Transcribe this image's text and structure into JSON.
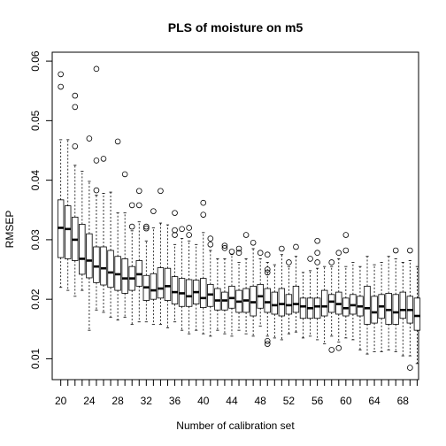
{
  "chart_data": {
    "type": "box",
    "title": "PLS of moisture on m5",
    "xlabel": "Number of calibration set",
    "ylabel": "RMSEP",
    "ylim": [
      0.0065,
      0.0615
    ],
    "xlim": [
      18.8,
      70.2
    ],
    "x_tick_labels": [
      "20",
      "24",
      "28",
      "32",
      "36",
      "40",
      "44",
      "48",
      "52",
      "56",
      "60",
      "64",
      "68"
    ],
    "y_tick_labels": [
      "0.01",
      "0.02",
      "0.03",
      "0.04",
      "0.05",
      "0.06"
    ],
    "grid": false,
    "boxes": [
      {
        "x": 20,
        "whislo": 0.022,
        "q1": 0.027,
        "med": 0.032,
        "q3": 0.0367,
        "whishi": 0.0468,
        "outliers": [
          0.0557,
          0.0578
        ]
      },
      {
        "x": 21,
        "whislo": 0.0215,
        "q1": 0.0268,
        "med": 0.0318,
        "q3": 0.0357,
        "whishi": 0.0468
      },
      {
        "x": 22,
        "whislo": 0.0205,
        "q1": 0.0265,
        "med": 0.03,
        "q3": 0.0338,
        "whishi": 0.0425,
        "outliers": [
          0.0457,
          0.0523,
          0.0542
        ]
      },
      {
        "x": 23,
        "whislo": 0.0215,
        "q1": 0.0242,
        "med": 0.0268,
        "q3": 0.0326,
        "whishi": 0.0415
      },
      {
        "x": 24,
        "whislo": 0.0148,
        "q1": 0.0236,
        "med": 0.0265,
        "q3": 0.031,
        "whishi": 0.0398,
        "outliers": [
          0.047
        ]
      },
      {
        "x": 25,
        "whislo": 0.0182,
        "q1": 0.0228,
        "med": 0.0255,
        "q3": 0.0288,
        "whishi": 0.0375,
        "outliers": [
          0.0383,
          0.0433,
          0.0587
        ]
      },
      {
        "x": 26,
        "whislo": 0.0178,
        "q1": 0.0224,
        "med": 0.0252,
        "q3": 0.0288,
        "whishi": 0.0378,
        "outliers": [
          0.0436
        ]
      },
      {
        "x": 27,
        "whislo": 0.017,
        "q1": 0.022,
        "med": 0.0245,
        "q3": 0.0282,
        "whishi": 0.038
      },
      {
        "x": 28,
        "whislo": 0.0165,
        "q1": 0.0215,
        "med": 0.0242,
        "q3": 0.0272,
        "whishi": 0.0345,
        "outliers": [
          0.0465
        ]
      },
      {
        "x": 29,
        "whislo": 0.017,
        "q1": 0.021,
        "med": 0.0235,
        "q3": 0.0268,
        "whishi": 0.0345,
        "outliers": [
          0.041
        ]
      },
      {
        "x": 30,
        "whislo": 0.0158,
        "q1": 0.0215,
        "med": 0.0235,
        "q3": 0.0255,
        "whishi": 0.0315,
        "outliers": [
          0.0322,
          0.0358
        ]
      },
      {
        "x": 31,
        "whislo": 0.0162,
        "q1": 0.0222,
        "med": 0.0242,
        "q3": 0.0265,
        "whishi": 0.033,
        "outliers": [
          0.0358,
          0.0382
        ]
      },
      {
        "x": 32,
        "whislo": 0.0162,
        "q1": 0.0198,
        "med": 0.022,
        "q3": 0.024,
        "whishi": 0.0298,
        "outliers": [
          0.0319,
          0.0322
        ]
      },
      {
        "x": 33,
        "whislo": 0.0158,
        "q1": 0.02,
        "med": 0.0215,
        "q3": 0.0243,
        "whishi": 0.032,
        "outliers": [
          0.0348
        ]
      },
      {
        "x": 34,
        "whislo": 0.0158,
        "q1": 0.0202,
        "med": 0.0218,
        "q3": 0.0253,
        "whishi": 0.0328,
        "outliers": [
          0.0382
        ]
      },
      {
        "x": 35,
        "whislo": 0.0152,
        "q1": 0.0198,
        "med": 0.0222,
        "q3": 0.0252,
        "whishi": 0.0325
      },
      {
        "x": 36,
        "whislo": 0.0162,
        "q1": 0.0192,
        "med": 0.0212,
        "q3": 0.0238,
        "whishi": 0.0292,
        "outliers": [
          0.0308,
          0.0316,
          0.0345
        ]
      },
      {
        "x": 37,
        "whislo": 0.0148,
        "q1": 0.0188,
        "med": 0.021,
        "q3": 0.0235,
        "whishi": 0.0302,
        "outliers": [
          0.0318
        ]
      },
      {
        "x": 38,
        "whislo": 0.0142,
        "q1": 0.0188,
        "med": 0.0205,
        "q3": 0.0233,
        "whishi": 0.0298,
        "outliers": [
          0.0308,
          0.032
        ]
      },
      {
        "x": 39,
        "whislo": 0.0148,
        "q1": 0.0192,
        "med": 0.0212,
        "q3": 0.0232,
        "whishi": 0.0292
      },
      {
        "x": 40,
        "whislo": 0.0142,
        "q1": 0.0186,
        "med": 0.0202,
        "q3": 0.0235,
        "whishi": 0.0312,
        "outliers": [
          0.0342,
          0.0362
        ]
      },
      {
        "x": 41,
        "whislo": 0.0138,
        "q1": 0.0188,
        "med": 0.0208,
        "q3": 0.0225,
        "whishi": 0.0282,
        "outliers": [
          0.0292,
          0.0302
        ]
      },
      {
        "x": 42,
        "whislo": 0.0148,
        "q1": 0.0182,
        "med": 0.0198,
        "q3": 0.0218,
        "whishi": 0.0268
      },
      {
        "x": 43,
        "whislo": 0.0142,
        "q1": 0.0182,
        "med": 0.0198,
        "q3": 0.0212,
        "whishi": 0.0268,
        "outliers": [
          0.0286,
          0.029
        ]
      },
      {
        "x": 44,
        "whislo": 0.0138,
        "q1": 0.0185,
        "med": 0.0202,
        "q3": 0.0222,
        "whishi": 0.0275,
        "outliers": [
          0.028
        ]
      },
      {
        "x": 45,
        "whislo": 0.0148,
        "q1": 0.0178,
        "med": 0.0196,
        "q3": 0.0215,
        "whishi": 0.0262,
        "outliers": [
          0.0278,
          0.0285
        ]
      },
      {
        "x": 46,
        "whislo": 0.0142,
        "q1": 0.0178,
        "med": 0.0198,
        "q3": 0.0218,
        "whishi": 0.0268,
        "outliers": [
          0.0308
        ]
      },
      {
        "x": 47,
        "whislo": 0.0138,
        "q1": 0.0172,
        "med": 0.0195,
        "q3": 0.0222,
        "whishi": 0.0285,
        "outliers": [
          0.0295
        ]
      },
      {
        "x": 48,
        "whislo": 0.0155,
        "q1": 0.0185,
        "med": 0.0205,
        "q3": 0.0225,
        "whishi": 0.0268,
        "outliers": [
          0.0278
        ]
      },
      {
        "x": 49,
        "whislo": 0.0138,
        "q1": 0.0178,
        "med": 0.0195,
        "q3": 0.0218,
        "whishi": 0.0262,
        "outliers": [
          0.0125,
          0.013,
          0.0245,
          0.025,
          0.0275
        ]
      },
      {
        "x": 50,
        "whislo": 0.0135,
        "q1": 0.0175,
        "med": 0.019,
        "q3": 0.0212,
        "whishi": 0.0258
      },
      {
        "x": 51,
        "whislo": 0.0132,
        "q1": 0.0172,
        "med": 0.0192,
        "q3": 0.0218,
        "whishi": 0.0275,
        "outliers": [
          0.0285
        ]
      },
      {
        "x": 52,
        "whislo": 0.0142,
        "q1": 0.0175,
        "med": 0.019,
        "q3": 0.0208,
        "whishi": 0.0255,
        "outliers": [
          0.0262
        ]
      },
      {
        "x": 53,
        "whislo": 0.0145,
        "q1": 0.0178,
        "med": 0.0192,
        "q3": 0.0222,
        "whishi": 0.0272,
        "outliers": [
          0.0288
        ]
      },
      {
        "x": 54,
        "whislo": 0.0135,
        "q1": 0.0168,
        "med": 0.0188,
        "q3": 0.0202,
        "whishi": 0.0245
      },
      {
        "x": 55,
        "whislo": 0.0138,
        "q1": 0.0168,
        "med": 0.0185,
        "q3": 0.0202,
        "whishi": 0.0248,
        "outliers": [
          0.0268
        ]
      },
      {
        "x": 56,
        "whislo": 0.0132,
        "q1": 0.0168,
        "med": 0.0188,
        "q3": 0.0202,
        "whishi": 0.0252,
        "outliers": [
          0.0262,
          0.0278,
          0.0298
        ]
      },
      {
        "x": 57,
        "whislo": 0.0125,
        "q1": 0.0172,
        "med": 0.0188,
        "q3": 0.0215,
        "whishi": 0.0255
      },
      {
        "x": 58,
        "whislo": 0.0138,
        "q1": 0.0178,
        "med": 0.0196,
        "q3": 0.0208,
        "whishi": 0.0255,
        "outliers": [
          0.0115,
          0.0262
        ]
      },
      {
        "x": 59,
        "whislo": 0.0128,
        "q1": 0.0175,
        "med": 0.0192,
        "q3": 0.0212,
        "whishi": 0.0268,
        "outliers": [
          0.0118,
          0.0278
        ]
      },
      {
        "x": 60,
        "whislo": 0.0135,
        "q1": 0.0172,
        "med": 0.0185,
        "q3": 0.0202,
        "whishi": 0.0255,
        "outliers": [
          0.0282,
          0.0308
        ]
      },
      {
        "x": 61,
        "whislo": 0.0132,
        "q1": 0.0175,
        "med": 0.019,
        "q3": 0.0208,
        "whishi": 0.0262
      },
      {
        "x": 62,
        "whislo": 0.0115,
        "q1": 0.0172,
        "med": 0.0188,
        "q3": 0.0205,
        "whishi": 0.0255
      },
      {
        "x": 63,
        "whislo": 0.0108,
        "q1": 0.0158,
        "med": 0.0185,
        "q3": 0.0222,
        "whishi": 0.0272
      },
      {
        "x": 64,
        "whislo": 0.0112,
        "q1": 0.016,
        "med": 0.0178,
        "q3": 0.0205,
        "whishi": 0.0258
      },
      {
        "x": 65,
        "whislo": 0.0112,
        "q1": 0.0168,
        "med": 0.0188,
        "q3": 0.0208,
        "whishi": 0.0262
      },
      {
        "x": 66,
        "whislo": 0.0115,
        "q1": 0.0158,
        "med": 0.0182,
        "q3": 0.021,
        "whishi": 0.0272
      },
      {
        "x": 67,
        "whislo": 0.0112,
        "q1": 0.0158,
        "med": 0.0178,
        "q3": 0.0208,
        "whishi": 0.0268,
        "outliers": [
          0.0282
        ]
      },
      {
        "x": 68,
        "whislo": 0.0105,
        "q1": 0.0168,
        "med": 0.0182,
        "q3": 0.0212,
        "whishi": 0.0262
      },
      {
        "x": 69,
        "whislo": 0.0105,
        "q1": 0.016,
        "med": 0.0182,
        "q3": 0.0205,
        "whishi": 0.0265,
        "outliers": [
          0.0085,
          0.0282
        ]
      },
      {
        "x": 70,
        "whislo": 0.0092,
        "q1": 0.0148,
        "med": 0.0172,
        "q3": 0.0202,
        "whishi": 0.0255
      }
    ]
  }
}
